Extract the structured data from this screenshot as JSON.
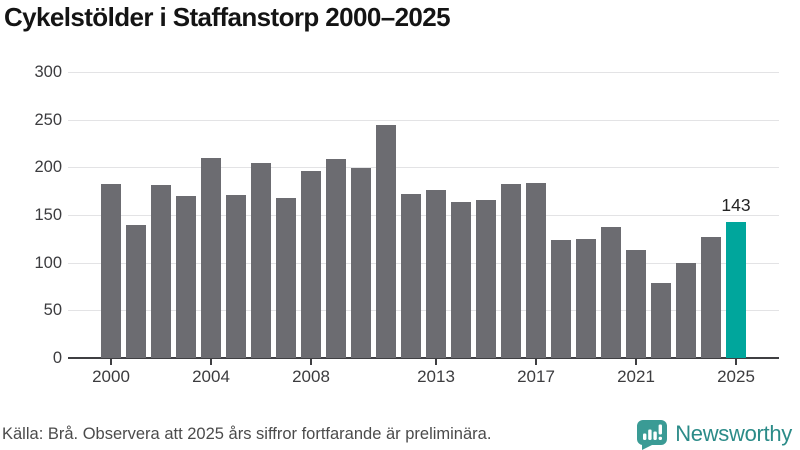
{
  "title": "Cykelstölder i Staffanstorp 2000–2025",
  "footer": {
    "source_note": "Källa: Brå. Observera att 2025 års siffror fortfarande är preliminära.",
    "brand_name": "Newsworthy"
  },
  "colors": {
    "bar": "#6c6c71",
    "highlight": "#00a69c",
    "grid": "#e3e3e5",
    "axis": "#3f3f42",
    "logo_icon": "#3a9b95",
    "logo_glyph": "#ffffff",
    "logo_text": "#2b8b88"
  },
  "chart_data": {
    "type": "bar",
    "x": [
      2000,
      2001,
      2002,
      2003,
      2004,
      2005,
      2006,
      2007,
      2008,
      2009,
      2010,
      2011,
      2012,
      2013,
      2014,
      2015,
      2016,
      2017,
      2018,
      2019,
      2020,
      2021,
      2022,
      2023,
      2024,
      2025
    ],
    "values": [
      183,
      140,
      181,
      170,
      210,
      171,
      205,
      168,
      196,
      209,
      199,
      244,
      172,
      176,
      164,
      166,
      182,
      184,
      124,
      125,
      137,
      113,
      79,
      100,
      127,
      143
    ],
    "highlight_index": 25,
    "highlight_label": "143",
    "x_tick_years": [
      2000,
      2004,
      2008,
      2013,
      2017,
      2021,
      2025
    ],
    "x_tick_labels": [
      "2000",
      "2004",
      "2008",
      "2013",
      "2017",
      "2021",
      "2025"
    ],
    "y_ticks": [
      0,
      50,
      100,
      150,
      200,
      250,
      300
    ],
    "ylim": [
      0,
      300
    ],
    "grid": true,
    "legend": false
  }
}
